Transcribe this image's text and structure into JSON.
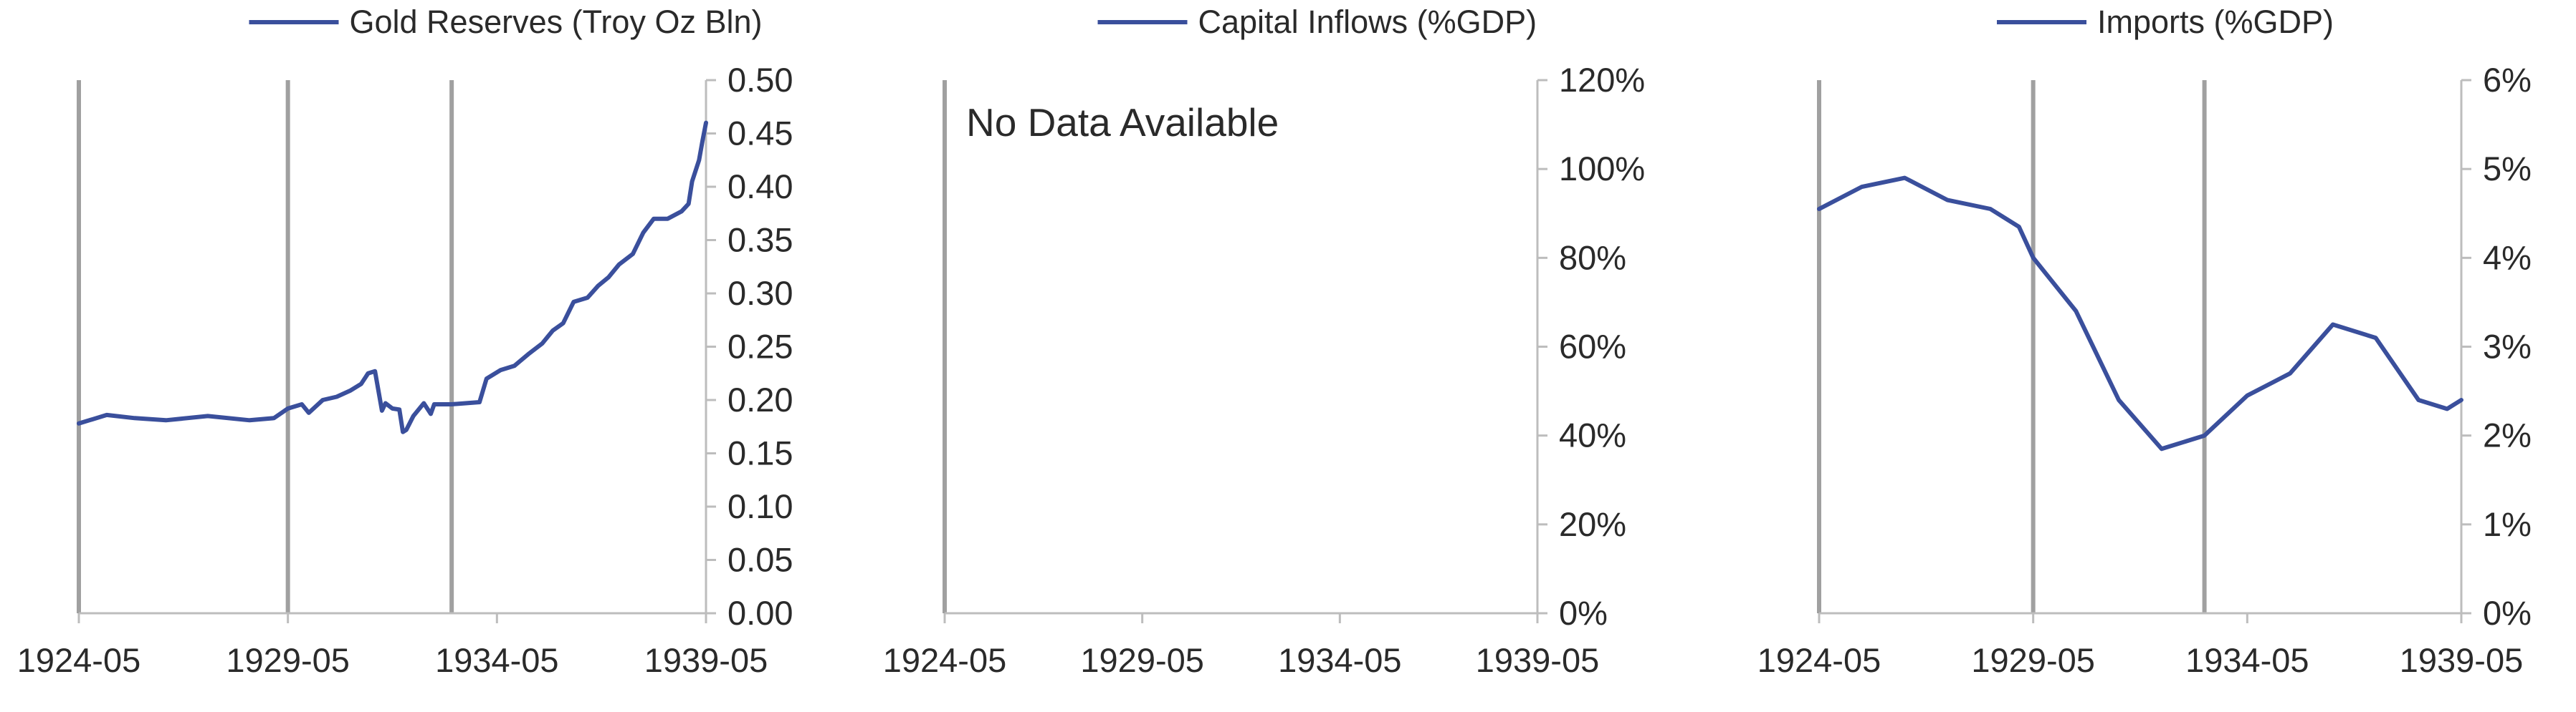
{
  "colors": {
    "line": "#3a4f9c",
    "axis": "#bdbdbd",
    "event_line": "#a0a0a0",
    "text": "#2a2a2a"
  },
  "chart_data": [
    {
      "type": "line",
      "legend": "Gold Reserves (Troy Oz Bln)",
      "legend_position": "top-center",
      "x_type": "date",
      "x_ticks": [
        "1924-05",
        "1929-05",
        "1934-05",
        "1939-05"
      ],
      "xlim": [
        "1924-05",
        "1939-05"
      ],
      "y_ticks": [
        "0.00",
        "0.05",
        "0.10",
        "0.15",
        "0.20",
        "0.25",
        "0.30",
        "0.35",
        "0.40",
        "0.45",
        "0.50"
      ],
      "ylim": [
        0,
        0.5
      ],
      "y_axis_side": "right",
      "grid": false,
      "event_lines": [
        "1924-05",
        "1929-05",
        "1933-04"
      ],
      "series": [
        {
          "name": "Gold Reserves (Troy Oz Bln)",
          "points": [
            [
              "1924-05",
              0.178
            ],
            [
              "1925-01",
              0.186
            ],
            [
              "1925-09",
              0.183
            ],
            [
              "1926-06",
              0.181
            ],
            [
              "1927-06",
              0.185
            ],
            [
              "1928-06",
              0.181
            ],
            [
              "1929-01",
              0.183
            ],
            [
              "1929-05",
              0.192
            ],
            [
              "1929-09",
              0.196
            ],
            [
              "1929-11",
              0.188
            ],
            [
              "1930-03",
              0.2
            ],
            [
              "1930-07",
              0.203
            ],
            [
              "1930-11",
              0.209
            ],
            [
              "1931-02",
              0.215
            ],
            [
              "1931-04",
              0.225
            ],
            [
              "1931-06",
              0.227
            ],
            [
              "1931-08",
              0.19
            ],
            [
              "1931-09",
              0.197
            ],
            [
              "1931-11",
              0.192
            ],
            [
              "1932-01",
              0.191
            ],
            [
              "1932-02",
              0.17
            ],
            [
              "1932-03",
              0.172
            ],
            [
              "1932-05",
              0.185
            ],
            [
              "1932-08",
              0.197
            ],
            [
              "1932-10",
              0.187
            ],
            [
              "1932-11",
              0.196
            ],
            [
              "1933-04",
              0.196
            ],
            [
              "1933-08",
              0.197
            ],
            [
              "1933-12",
              0.198
            ],
            [
              "1934-02",
              0.22
            ],
            [
              "1934-06",
              0.228
            ],
            [
              "1934-10",
              0.232
            ],
            [
              "1935-02",
              0.243
            ],
            [
              "1935-06",
              0.253
            ],
            [
              "1935-09",
              0.265
            ],
            [
              "1935-12",
              0.272
            ],
            [
              "1936-03",
              0.292
            ],
            [
              "1936-07",
              0.296
            ],
            [
              "1936-10",
              0.307
            ],
            [
              "1937-01",
              0.315
            ],
            [
              "1937-04",
              0.327
            ],
            [
              "1937-08",
              0.337
            ],
            [
              "1937-11",
              0.357
            ],
            [
              "1938-02",
              0.37
            ],
            [
              "1938-06",
              0.37
            ],
            [
              "1938-10",
              0.377
            ],
            [
              "1938-12",
              0.384
            ],
            [
              "1939-01",
              0.405
            ],
            [
              "1939-03",
              0.425
            ],
            [
              "1939-04",
              0.443
            ],
            [
              "1939-05",
              0.46
            ]
          ]
        }
      ]
    },
    {
      "type": "line",
      "legend": "Capital Inflows (%GDP)",
      "legend_position": "top-center",
      "annotation": "No Data Available",
      "x_type": "date",
      "x_ticks": [
        "1924-05",
        "1929-05",
        "1934-05",
        "1939-05"
      ],
      "xlim": [
        "1924-05",
        "1939-05"
      ],
      "y_ticks": [
        "0%",
        "20%",
        "40%",
        "60%",
        "80%",
        "100%",
        "120%"
      ],
      "ylim": [
        0,
        120
      ],
      "y_axis_side": "right",
      "grid": false,
      "event_lines": [
        "1924-05"
      ],
      "series": [
        {
          "name": "Capital Inflows (%GDP)",
          "points": []
        }
      ]
    },
    {
      "type": "line",
      "legend": "Imports (%GDP)",
      "legend_position": "top-center",
      "x_type": "date",
      "x_ticks": [
        "1924-05",
        "1929-05",
        "1934-05",
        "1939-05"
      ],
      "xlim": [
        "1924-05",
        "1939-05"
      ],
      "y_ticks": [
        "0%",
        "1%",
        "2%",
        "3%",
        "4%",
        "5%",
        "6%"
      ],
      "ylim": [
        0,
        6
      ],
      "y_axis_side": "right",
      "grid": false,
      "event_lines": [
        "1924-05",
        "1929-05",
        "1933-05"
      ],
      "series": [
        {
          "name": "Imports (%GDP)",
          "points": [
            [
              "1924-05",
              4.55
            ],
            [
              "1925-05",
              4.8
            ],
            [
              "1926-05",
              4.9
            ],
            [
              "1927-05",
              4.65
            ],
            [
              "1928-05",
              4.55
            ],
            [
              "1929-01",
              4.35
            ],
            [
              "1929-05",
              4.0
            ],
            [
              "1930-05",
              3.4
            ],
            [
              "1931-05",
              2.4
            ],
            [
              "1932-05",
              1.85
            ],
            [
              "1933-05",
              2.0
            ],
            [
              "1934-05",
              2.45
            ],
            [
              "1935-05",
              2.7
            ],
            [
              "1936-05",
              3.25
            ],
            [
              "1937-05",
              3.1
            ],
            [
              "1938-05",
              2.4
            ],
            [
              "1939-01",
              2.3
            ],
            [
              "1939-05",
              2.4
            ]
          ]
        }
      ]
    }
  ]
}
